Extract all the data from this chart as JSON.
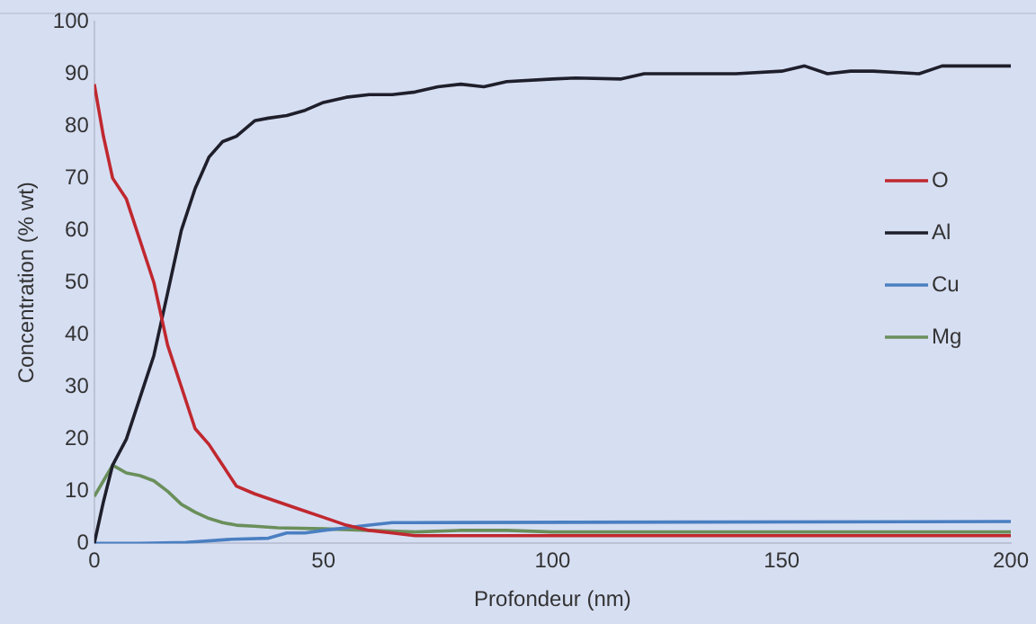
{
  "chart_data": {
    "type": "line",
    "xlabel": "Profondeur (nm)",
    "ylabel": "Concentration (% wt)",
    "xlim": [
      0,
      200
    ],
    "xticks": [
      0,
      50,
      100,
      150,
      200
    ],
    "ylim": [
      0,
      100
    ],
    "yticks": [
      0,
      10,
      20,
      30,
      40,
      50,
      60,
      70,
      80,
      90,
      100
    ],
    "grid": false,
    "legend": "right",
    "marker": "none",
    "line_style": "solid",
    "series": [
      {
        "name": "O",
        "color": "#c0282f",
        "x": [
          0,
          2,
          4,
          7,
          10,
          13,
          16,
          19,
          22,
          25,
          28,
          31,
          35,
          40,
          45,
          50,
          55,
          60,
          65,
          70,
          80,
          100,
          200
        ],
        "values": [
          88,
          78,
          70,
          66,
          58,
          50,
          38,
          30,
          22,
          19,
          15,
          11,
          9.5,
          8,
          6.5,
          5,
          3.5,
          2.5,
          2,
          1.5,
          1.5,
          1.5,
          1.5
        ]
      },
      {
        "name": "Al",
        "color": "#1f1f2b",
        "x": [
          0,
          2,
          4,
          7,
          10,
          13,
          16,
          19,
          22,
          25,
          28,
          31,
          35,
          38,
          42,
          46,
          50,
          55,
          60,
          65,
          70,
          75,
          80,
          85,
          90,
          100,
          105,
          115,
          120,
          130,
          140,
          150,
          155,
          160,
          165,
          170,
          180,
          185,
          190,
          200
        ],
        "values": [
          0,
          8,
          15,
          20,
          28,
          36,
          48,
          60,
          68,
          74,
          77,
          78,
          81,
          81.5,
          82,
          83,
          84.5,
          85.5,
          86,
          86,
          86.5,
          87.5,
          88,
          87.5,
          88.5,
          89,
          89.2,
          89,
          90,
          90,
          90,
          90.5,
          91.5,
          90,
          90.5,
          90.5,
          90,
          91.5,
          91.5,
          91.5
        ]
      },
      {
        "name": "Cu",
        "color": "#4a7fc1",
        "x": [
          0,
          10,
          20,
          30,
          38,
          42,
          46,
          50,
          55,
          60,
          65,
          70,
          200
        ],
        "values": [
          0,
          0,
          0.2,
          0.8,
          1,
          2,
          2,
          2.5,
          3,
          3.5,
          4,
          4,
          4.2
        ]
      },
      {
        "name": "Mg",
        "color": "#6a8f5a",
        "x": [
          0,
          2,
          4,
          7,
          10,
          13,
          16,
          19,
          22,
          25,
          28,
          31,
          35,
          40,
          50,
          60,
          70,
          80,
          90,
          100,
          200
        ],
        "values": [
          9,
          12,
          15,
          13.5,
          13,
          12,
          10,
          7.5,
          6,
          4.8,
          4,
          3.5,
          3.3,
          3,
          2.8,
          2.5,
          2.2,
          2.5,
          2.5,
          2.2,
          2.2
        ]
      }
    ]
  }
}
